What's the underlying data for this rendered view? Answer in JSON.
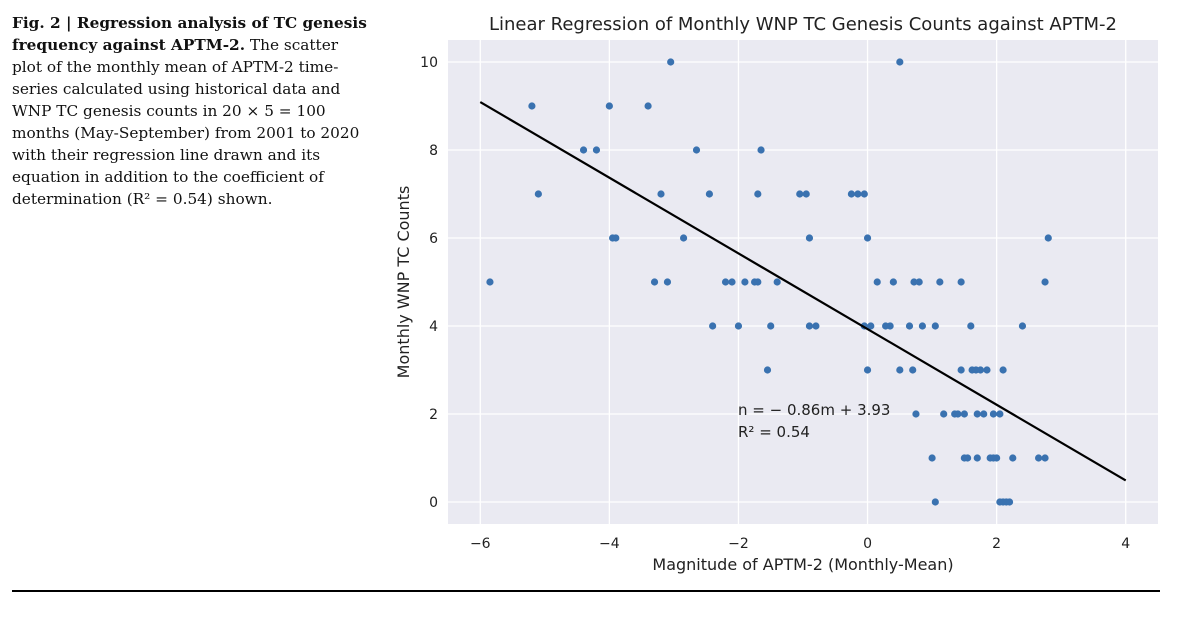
{
  "caption": {
    "label": "Fig. 2 | Regression analysis of TC genesis frequency against APTM-2.",
    "text": "The scatter plot of the monthly mean of APTM-2 time-series calculated using historical data and WNP TC genesis counts in 20 × 5 = 100 months (May-September) from 2001 to 2020 with their regression line drawn and its equation in addition to the coefficient of determination (R² = 0.54) shown."
  },
  "chart_data": {
    "type": "scatter",
    "title": "Linear Regression of Monthly WNP TC Genesis Counts against APTM-2",
    "xlabel": "Magnitude of APTM-2 (Monthly-Mean)",
    "ylabel": "Monthly WNP TC Counts",
    "xlim": [
      -6.5,
      4.5
    ],
    "ylim": [
      -0.5,
      10.5
    ],
    "xticks": [
      -6,
      -4,
      -2,
      0,
      2,
      4
    ],
    "yticks": [
      0,
      2,
      4,
      6,
      8,
      10
    ],
    "xtick_labels": [
      "−6",
      "−4",
      "−2",
      "0",
      "2",
      "4"
    ],
    "ytick_labels": [
      "0",
      "2",
      "4",
      "6",
      "8",
      "10"
    ],
    "grid": true,
    "point_color": "#3a72b0",
    "line_color": "#000000",
    "background_color": "#eaeaf2",
    "regression": {
      "slope": -0.86,
      "intercept": 3.93,
      "x_range": [
        -6,
        4
      ]
    },
    "annotation": {
      "equation": "n = − 0.86m + 3.93",
      "r2": "R² = 0.54"
    },
    "points": [
      {
        "x": -5.85,
        "y": 5
      },
      {
        "x": -5.2,
        "y": 9
      },
      {
        "x": -5.1,
        "y": 7
      },
      {
        "x": -4.4,
        "y": 8
      },
      {
        "x": -4.2,
        "y": 8
      },
      {
        "x": -4.0,
        "y": 9
      },
      {
        "x": -3.95,
        "y": 6
      },
      {
        "x": -3.9,
        "y": 6
      },
      {
        "x": -3.4,
        "y": 9
      },
      {
        "x": -3.3,
        "y": 5
      },
      {
        "x": -3.2,
        "y": 7
      },
      {
        "x": -3.1,
        "y": 5
      },
      {
        "x": -3.05,
        "y": 10
      },
      {
        "x": -2.85,
        "y": 6
      },
      {
        "x": -2.65,
        "y": 8
      },
      {
        "x": -2.45,
        "y": 7
      },
      {
        "x": -2.4,
        "y": 4
      },
      {
        "x": -2.2,
        "y": 5
      },
      {
        "x": -2.1,
        "y": 5
      },
      {
        "x": -2.0,
        "y": 4
      },
      {
        "x": -1.9,
        "y": 5
      },
      {
        "x": -1.75,
        "y": 5
      },
      {
        "x": -1.7,
        "y": 7
      },
      {
        "x": -1.7,
        "y": 5
      },
      {
        "x": -1.65,
        "y": 8
      },
      {
        "x": -1.55,
        "y": 3
      },
      {
        "x": -1.5,
        "y": 4
      },
      {
        "x": -1.4,
        "y": 5
      },
      {
        "x": -1.05,
        "y": 7
      },
      {
        "x": -0.95,
        "y": 7
      },
      {
        "x": -0.9,
        "y": 6
      },
      {
        "x": -0.9,
        "y": 4
      },
      {
        "x": -0.8,
        "y": 4
      },
      {
        "x": -0.25,
        "y": 7
      },
      {
        "x": -0.15,
        "y": 7
      },
      {
        "x": -0.05,
        "y": 7
      },
      {
        "x": -0.05,
        "y": 4
      },
      {
        "x": 0.0,
        "y": 6
      },
      {
        "x": 0.0,
        "y": 3
      },
      {
        "x": 0.05,
        "y": 4
      },
      {
        "x": 0.15,
        "y": 5
      },
      {
        "x": 0.28,
        "y": 4
      },
      {
        "x": 0.35,
        "y": 4
      },
      {
        "x": 0.4,
        "y": 5
      },
      {
        "x": 0.5,
        "y": 10
      },
      {
        "x": 0.5,
        "y": 3
      },
      {
        "x": 0.65,
        "y": 4
      },
      {
        "x": 0.7,
        "y": 3
      },
      {
        "x": 0.72,
        "y": 5
      },
      {
        "x": 0.75,
        "y": 2
      },
      {
        "x": 0.8,
        "y": 5
      },
      {
        "x": 0.85,
        "y": 4
      },
      {
        "x": 1.0,
        "y": 1
      },
      {
        "x": 1.05,
        "y": 0
      },
      {
        "x": 1.05,
        "y": 4
      },
      {
        "x": 1.12,
        "y": 5
      },
      {
        "x": 1.18,
        "y": 2
      },
      {
        "x": 1.35,
        "y": 2
      },
      {
        "x": 1.4,
        "y": 2
      },
      {
        "x": 1.45,
        "y": 5
      },
      {
        "x": 1.45,
        "y": 3
      },
      {
        "x": 1.5,
        "y": 1
      },
      {
        "x": 1.5,
        "y": 2
      },
      {
        "x": 1.55,
        "y": 1
      },
      {
        "x": 1.6,
        "y": 4
      },
      {
        "x": 1.62,
        "y": 3
      },
      {
        "x": 1.68,
        "y": 3
      },
      {
        "x": 1.7,
        "y": 2
      },
      {
        "x": 1.7,
        "y": 1
      },
      {
        "x": 1.75,
        "y": 3
      },
      {
        "x": 1.8,
        "y": 2
      },
      {
        "x": 1.85,
        "y": 3
      },
      {
        "x": 1.9,
        "y": 1
      },
      {
        "x": 1.95,
        "y": 1
      },
      {
        "x": 1.95,
        "y": 2
      },
      {
        "x": 2.0,
        "y": 1
      },
      {
        "x": 2.05,
        "y": 0
      },
      {
        "x": 2.05,
        "y": 2
      },
      {
        "x": 2.1,
        "y": 0
      },
      {
        "x": 2.1,
        "y": 3
      },
      {
        "x": 2.15,
        "y": 0
      },
      {
        "x": 2.2,
        "y": 0
      },
      {
        "x": 2.25,
        "y": 1
      },
      {
        "x": 2.4,
        "y": 4
      },
      {
        "x": 2.65,
        "y": 1
      },
      {
        "x": 2.75,
        "y": 1
      },
      {
        "x": 2.75,
        "y": 5
      },
      {
        "x": 2.8,
        "y": 6
      }
    ]
  }
}
